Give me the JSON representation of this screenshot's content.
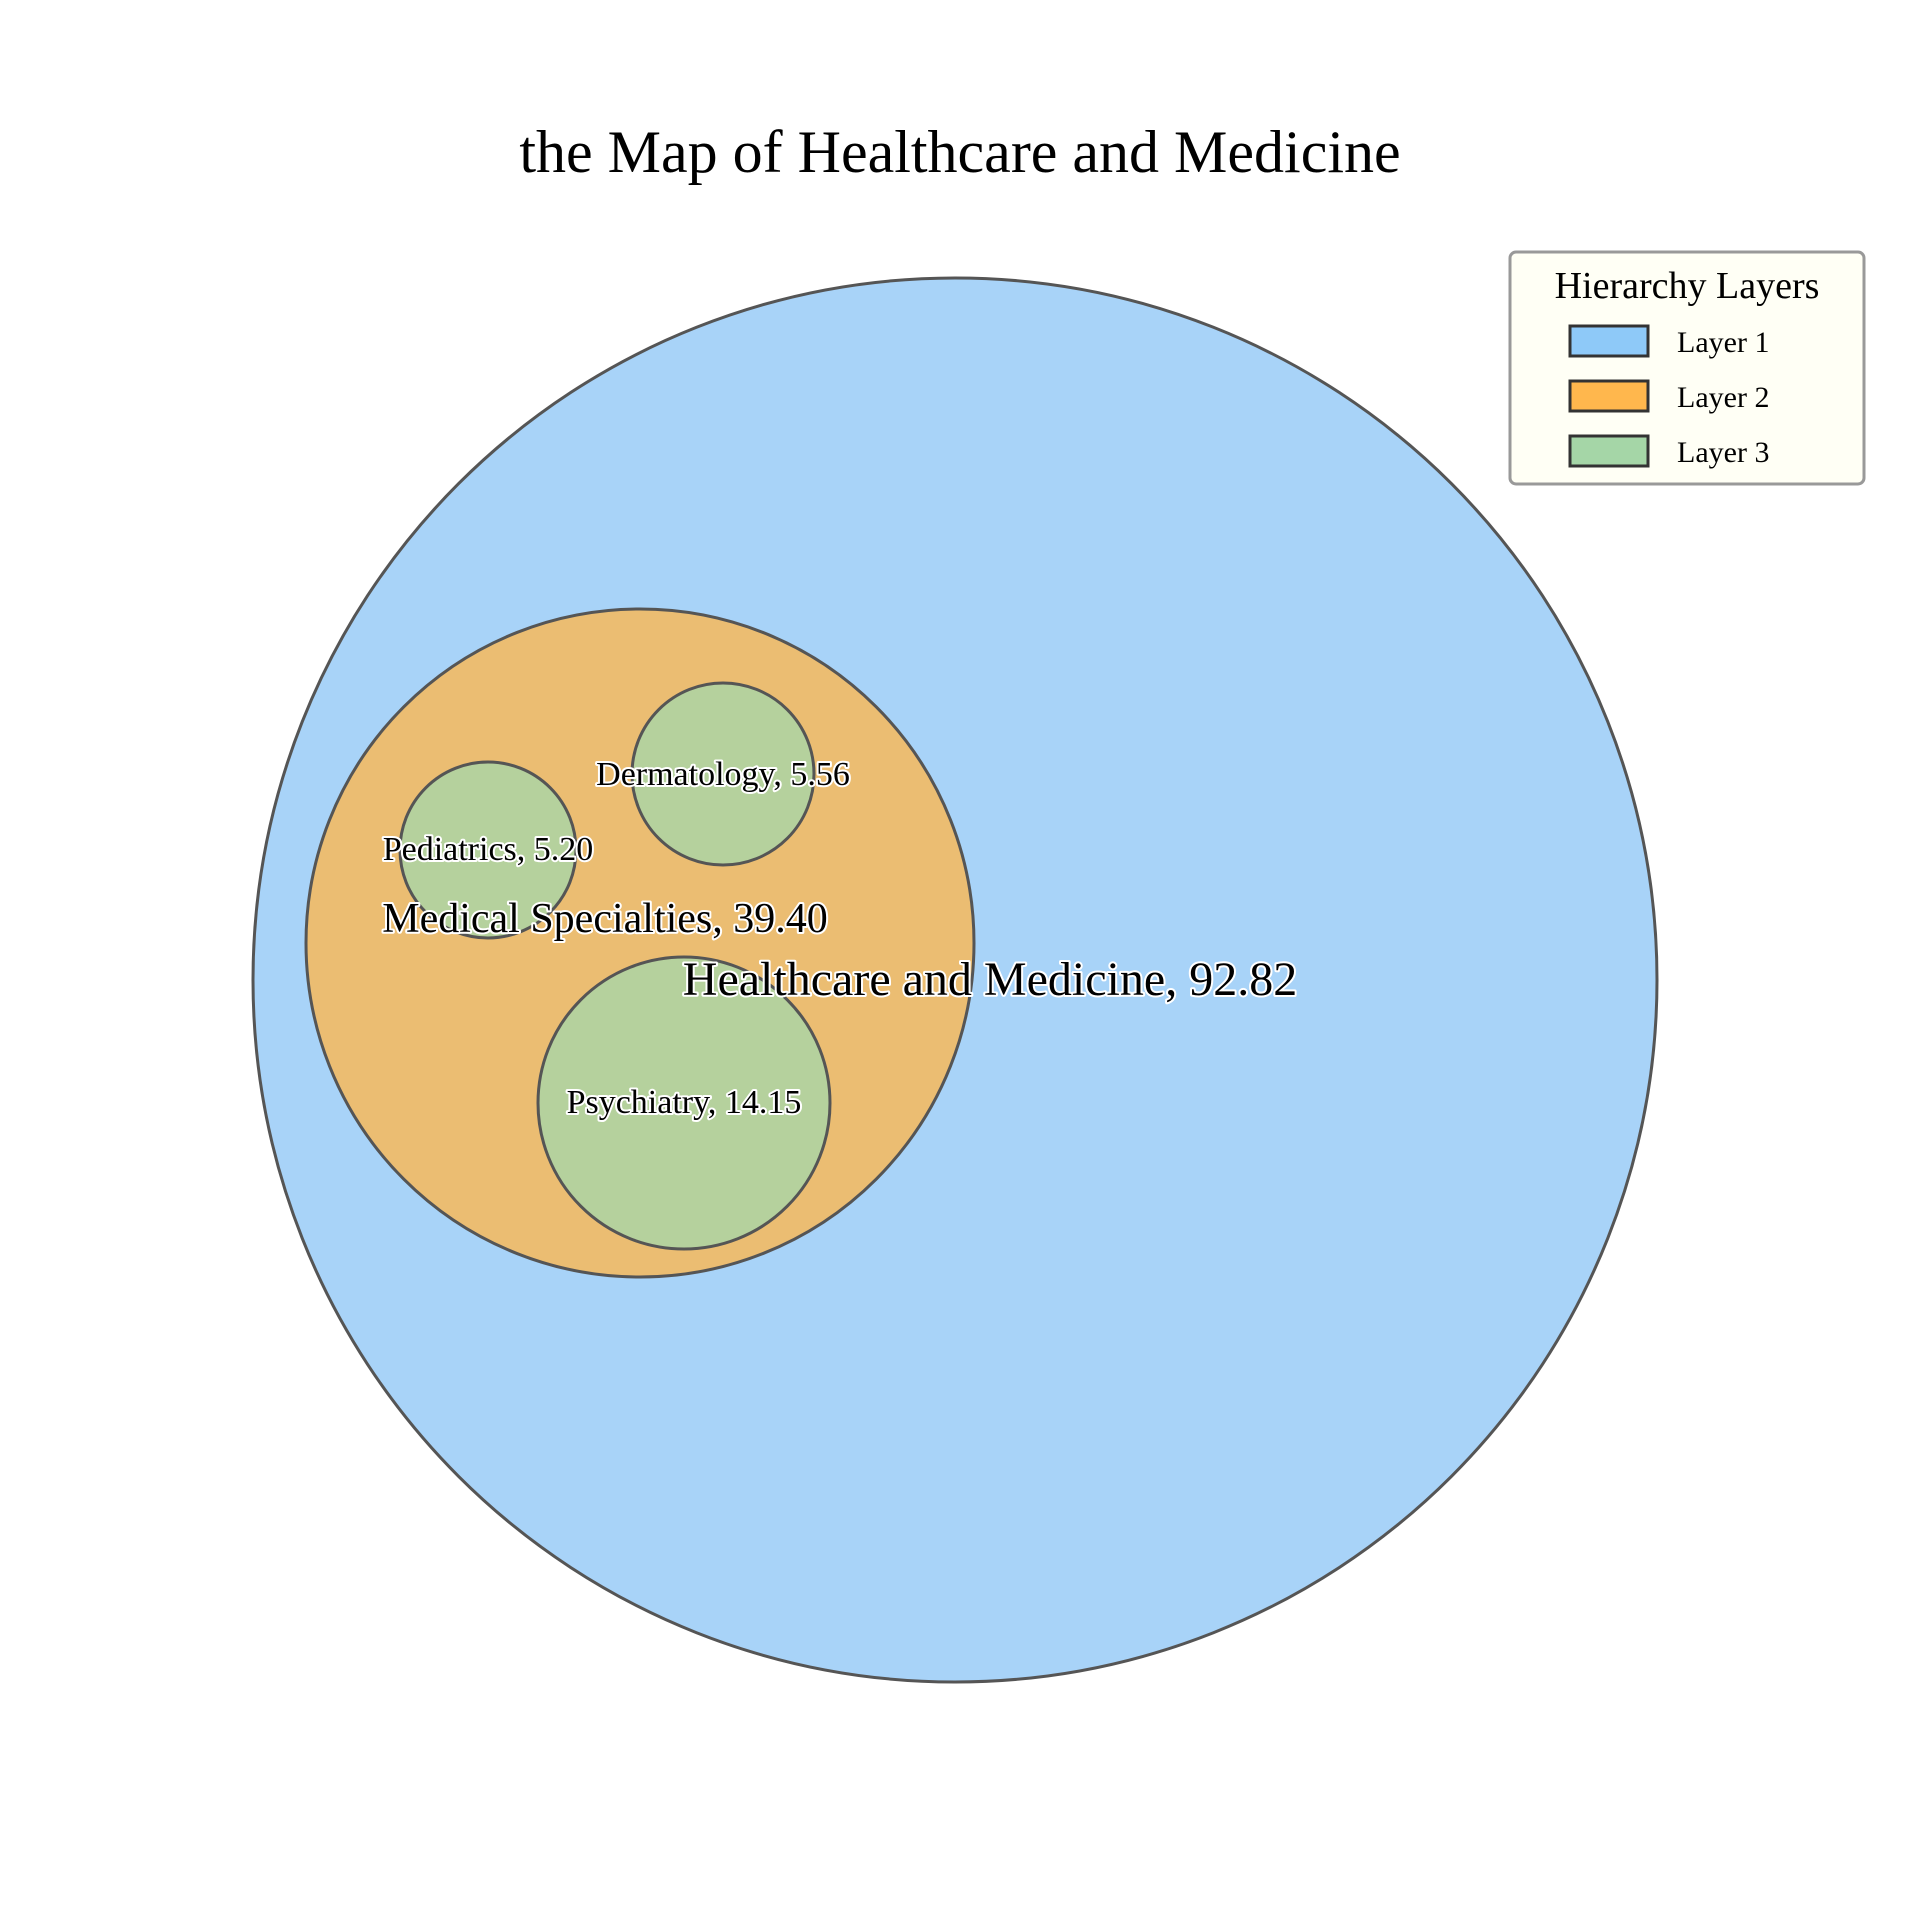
{
  "chart_data": {
    "type": "circle-packing",
    "title": "the Map of Healthcare and Medicine",
    "nodes": [
      {
        "id": "root",
        "label": "Healthcare and Medicine, 92.82",
        "name": "Healthcare and Medicine",
        "value": 92.82,
        "layer": 1,
        "parent": null
      },
      {
        "id": "specialties",
        "label": "Medical Specialties, 39.40",
        "name": "Medical Specialties",
        "value": 39.4,
        "layer": 2,
        "parent": "root"
      },
      {
        "id": "dermatology",
        "label": "Dermatology, 5.56",
        "name": "Dermatology",
        "value": 5.56,
        "layer": 3,
        "parent": "specialties"
      },
      {
        "id": "pediatrics",
        "label": "Pediatrics, 5.20",
        "name": "Pediatrics",
        "value": 5.2,
        "layer": 3,
        "parent": "specialties"
      },
      {
        "id": "psychiatry",
        "label": "Psychiatry, 14.15",
        "name": "Psychiatry",
        "value": 14.15,
        "layer": 3,
        "parent": "specialties"
      }
    ],
    "legend": {
      "title": "Hierarchy Layers",
      "placement": "top-right",
      "items": [
        {
          "label": "Layer 1",
          "color": "#8ec9f8"
        },
        {
          "label": "Layer 2",
          "color": "#ffb74d"
        },
        {
          "label": "Layer 3",
          "color": "#a5d6a7"
        }
      ]
    },
    "fill_colors": {
      "1": "#a8d3f8",
      "2": "#ebbd72",
      "3": "#b5d19d"
    }
  }
}
